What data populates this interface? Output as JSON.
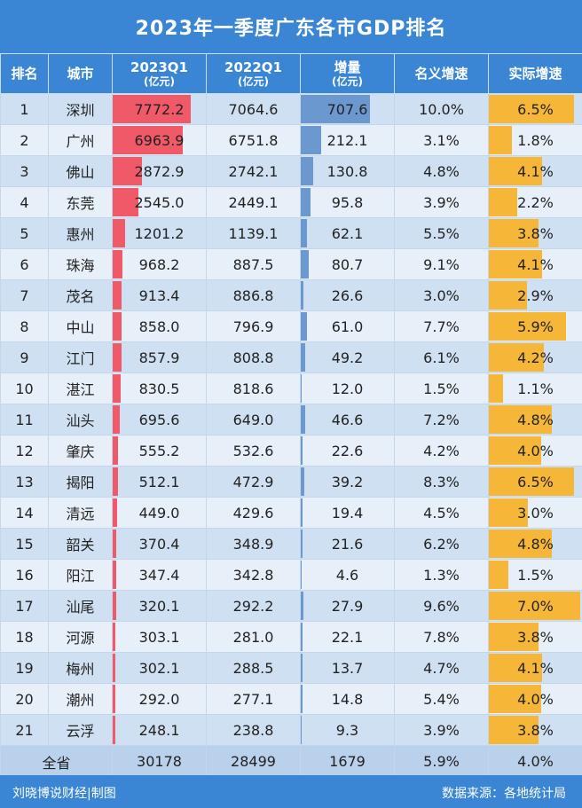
{
  "title": "2023年一季度广东各市GDP排名",
  "headers": {
    "rank": "排名",
    "city": "城市",
    "gdp2023": "2023Q1",
    "gdp2023_unit": "(亿元)",
    "gdp2022": "2022Q1",
    "gdp2022_unit": "(亿元)",
    "increase": "增量",
    "increase_unit": "(亿元)",
    "nominal": "名义增速",
    "real": "实际增速"
  },
  "colors": {
    "header_bg": "#3a86d4",
    "bar_2023": "#f05a68",
    "bar_increase": "#6a98cf",
    "bar_real": "#f6b637"
  },
  "chart_data": {
    "type": "table",
    "rows": [
      {
        "rank": "1",
        "city": "深圳",
        "gdp2023": "7772.2",
        "gdp2022": "7064.6",
        "increase": "707.6",
        "nominal": "10.0%",
        "real": "6.5%"
      },
      {
        "rank": "2",
        "city": "广州",
        "gdp2023": "6963.9",
        "gdp2022": "6751.8",
        "increase": "212.1",
        "nominal": "3.1%",
        "real": "1.8%"
      },
      {
        "rank": "3",
        "city": "佛山",
        "gdp2023": "2872.9",
        "gdp2022": "2742.1",
        "increase": "130.8",
        "nominal": "4.8%",
        "real": "4.1%"
      },
      {
        "rank": "4",
        "city": "东莞",
        "gdp2023": "2545.0",
        "gdp2022": "2449.1",
        "increase": "95.8",
        "nominal": "3.9%",
        "real": "2.2%"
      },
      {
        "rank": "5",
        "city": "惠州",
        "gdp2023": "1201.2",
        "gdp2022": "1139.1",
        "increase": "62.1",
        "nominal": "5.5%",
        "real": "3.8%"
      },
      {
        "rank": "6",
        "city": "珠海",
        "gdp2023": "968.2",
        "gdp2022": "887.5",
        "increase": "80.7",
        "nominal": "9.1%",
        "real": "4.1%"
      },
      {
        "rank": "7",
        "city": "茂名",
        "gdp2023": "913.4",
        "gdp2022": "886.8",
        "increase": "26.6",
        "nominal": "3.0%",
        "real": "2.9%"
      },
      {
        "rank": "8",
        "city": "中山",
        "gdp2023": "858.0",
        "gdp2022": "796.9",
        "increase": "61.0",
        "nominal": "7.7%",
        "real": "5.9%"
      },
      {
        "rank": "9",
        "city": "江门",
        "gdp2023": "857.9",
        "gdp2022": "808.8",
        "increase": "49.2",
        "nominal": "6.1%",
        "real": "4.2%"
      },
      {
        "rank": "10",
        "city": "湛江",
        "gdp2023": "830.5",
        "gdp2022": "818.6",
        "increase": "12.0",
        "nominal": "1.5%",
        "real": "1.1%"
      },
      {
        "rank": "11",
        "city": "汕头",
        "gdp2023": "695.6",
        "gdp2022": "649.0",
        "increase": "46.6",
        "nominal": "7.2%",
        "real": "4.8%"
      },
      {
        "rank": "12",
        "city": "肇庆",
        "gdp2023": "555.2",
        "gdp2022": "532.6",
        "increase": "22.6",
        "nominal": "4.2%",
        "real": "4.0%"
      },
      {
        "rank": "13",
        "city": "揭阳",
        "gdp2023": "512.1",
        "gdp2022": "472.9",
        "increase": "39.2",
        "nominal": "8.3%",
        "real": "6.5%"
      },
      {
        "rank": "14",
        "city": "清远",
        "gdp2023": "449.0",
        "gdp2022": "429.6",
        "increase": "19.4",
        "nominal": "4.5%",
        "real": "3.0%"
      },
      {
        "rank": "15",
        "city": "韶关",
        "gdp2023": "370.4",
        "gdp2022": "348.9",
        "increase": "21.6",
        "nominal": "6.2%",
        "real": "4.8%"
      },
      {
        "rank": "16",
        "city": "阳江",
        "gdp2023": "347.4",
        "gdp2022": "342.8",
        "increase": "4.6",
        "nominal": "1.3%",
        "real": "1.5%"
      },
      {
        "rank": "17",
        "city": "汕尾",
        "gdp2023": "320.1",
        "gdp2022": "292.2",
        "increase": "27.9",
        "nominal": "9.6%",
        "real": "7.0%"
      },
      {
        "rank": "18",
        "city": "河源",
        "gdp2023": "303.1",
        "gdp2022": "281.0",
        "increase": "22.1",
        "nominal": "7.8%",
        "real": "3.8%"
      },
      {
        "rank": "19",
        "city": "梅州",
        "gdp2023": "302.1",
        "gdp2022": "288.5",
        "increase": "13.7",
        "nominal": "4.7%",
        "real": "4.1%"
      },
      {
        "rank": "20",
        "city": "潮州",
        "gdp2023": "292.0",
        "gdp2022": "277.1",
        "increase": "14.8",
        "nominal": "5.4%",
        "real": "4.0%"
      },
      {
        "rank": "21",
        "city": "云浮",
        "gdp2023": "248.1",
        "gdp2022": "238.8",
        "increase": "9.3",
        "nominal": "3.9%",
        "real": "3.8%"
      }
    ],
    "total": {
      "label": "全省",
      "gdp2023": "30178",
      "gdp2022": "28499",
      "increase": "1679",
      "nominal": "5.9%",
      "real": "4.0%"
    }
  },
  "footer": {
    "credit": "刘晓博说财经|制图",
    "source": "数据来源：各地统计局"
  }
}
